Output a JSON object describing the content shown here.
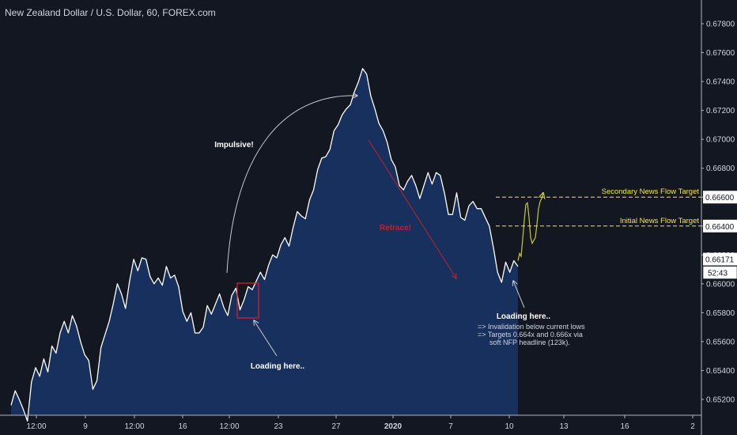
{
  "title": "New Zealand Dollar / U.S. Dollar, 60, FOREX.com",
  "chart_data": {
    "type": "area",
    "ylim": [
      0.6505,
      0.6796
    ],
    "y_ticks": [
      "0.67800",
      "0.67600",
      "0.67400",
      "0.67200",
      "0.67000",
      "0.66800",
      "0.66600",
      "0.66400",
      "0.66200",
      "0.66000",
      "0.65800",
      "0.65600",
      "0.65400",
      "0.65200"
    ],
    "x_ticks": [
      "12:00",
      "9",
      "12:00",
      "16",
      "12:00",
      "23",
      "27",
      "2020",
      "7",
      "10",
      "13",
      "16",
      "2"
    ],
    "price_series": [
      [
        0.6516,
        0.6526,
        0.652,
        0.6513,
        0.6505,
        0.6532,
        0.6542,
        0.6536,
        0.6548,
        0.6539,
        0.6557,
        0.6552,
        0.6566,
        0.6574,
        0.6566,
        0.6578,
        0.6571,
        0.656,
        0.6551,
        0.6547,
        0.6527,
        0.6533,
        0.6556,
        0.6565,
        0.6574,
        0.6586,
        0.66,
        0.6593,
        0.6583,
        0.6602,
        0.6617,
        0.6609,
        0.6618,
        0.6617,
        0.6605,
        0.66,
        0.6604,
        0.6599,
        0.6612,
        0.6604,
        0.6606,
        0.6598,
        0.6581,
        0.6574,
        0.658,
        0.6566,
        0.6566,
        0.657,
        0.6585,
        0.6579,
        0.6586,
        0.6593,
        0.6584,
        0.6578,
        0.6592,
        0.6597,
        0.6582,
        0.6589,
        0.6598,
        0.6596,
        0.6602,
        0.6608,
        0.6603,
        0.6613,
        0.662,
        0.6618,
        0.6627,
        0.6632,
        0.6626,
        0.6639,
        0.665,
        0.6647,
        0.6645,
        0.6658,
        0.6665,
        0.6679,
        0.6687,
        0.6688,
        0.6693,
        0.6706,
        0.671,
        0.6717,
        0.6721,
        0.6724,
        0.6733,
        0.674,
        0.6749,
        0.6745,
        0.673,
        0.6721,
        0.6711,
        0.6706,
        0.6698,
        0.6686,
        0.6681,
        0.6668,
        0.6665,
        0.6671,
        0.6675,
        0.6668,
        0.6659,
        0.6668,
        0.6677,
        0.6669,
        0.6677,
        0.6675,
        0.6663,
        0.6648,
        0.6648,
        0.6663,
        0.6646,
        0.6644,
        0.6654,
        0.6657,
        0.6652,
        0.6652,
        0.6646,
        0.664,
        0.6625,
        0.6608,
        0.6601,
        0.6615,
        0.6608,
        0.6616,
        0.6612
      ],
      [
        0.6616,
        0.6621,
        0.6619,
        0.6631,
        0.6644,
        0.6655,
        0.6656,
        0.6646,
        0.6632,
        0.6628,
        0.663,
        0.6632,
        0.6641,
        0.6652,
        0.6657,
        0.6659,
        0.6663
      ]
    ],
    "levels": [
      {
        "label": "Secondary News Flow Target",
        "value": 0.666,
        "price_label": "0.66600"
      },
      {
        "label": "Initial News Flow Target",
        "value": 0.664,
        "price_label": "0.66400"
      }
    ],
    "last_price": "0.66171",
    "countdown": "52:43",
    "annotations": {
      "impulsive": "Impulsive!",
      "retrace": "Retrace!",
      "loading_left": "Loading here..",
      "loading_right": "Loading here..",
      "note_lines": [
        "=> Invalidation below current lows",
        "=> Targets 0.664x and 0.666x via",
        "soft NFP headline (123k)."
      ]
    },
    "colors": {
      "background": "#131722",
      "price_line": "#ffffff",
      "area_fill": "#1b3a72",
      "level_line": "#f5e836",
      "projection": "#c9c93a",
      "retrace_arrow": "#c2202e",
      "box": "#e02020",
      "arrow": "#c8cbd2",
      "axis_text": "#d1d4dc"
    }
  }
}
